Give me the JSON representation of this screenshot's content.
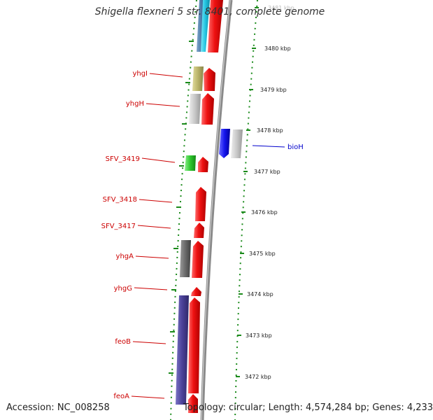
{
  "title": "Shigella flexneri 5 str. 8401, complete genome",
  "footer": {
    "accession": "Accession: NC_008258",
    "summary": "Topology: circular; Length: 4,574,284 bp; Genes: 4,233"
  },
  "colors": {
    "forward_gene": "#ee1111",
    "backbone": "#8a8a8a",
    "tick": "#1a8a1a",
    "label": "#cc0000",
    "label_reverse": "#0000cc"
  },
  "scale_labels": [
    "3481 kbp",
    "3480 kbp",
    "3479 kbp",
    "3478 kbp",
    "3477 kbp",
    "3476 kbp",
    "3475 kbp",
    "3474 kbp",
    "3473 kbp",
    "3472 kbp"
  ],
  "gene_labels": [
    {
      "name": "yhgI",
      "strand": "reverse-inner"
    },
    {
      "name": "yhgH",
      "strand": "reverse-inner"
    },
    {
      "name": "SFV_3419",
      "strand": "reverse-inner"
    },
    {
      "name": "SFV_3418",
      "strand": "reverse-inner"
    },
    {
      "name": "SFV_3417",
      "strand": "reverse-inner"
    },
    {
      "name": "yhgA",
      "strand": "reverse-inner"
    },
    {
      "name": "yhgG",
      "strand": "reverse-inner"
    },
    {
      "name": "feoB",
      "strand": "reverse-inner"
    },
    {
      "name": "feoA",
      "strand": "reverse-inner"
    },
    {
      "name": "bioH",
      "strand": "outer"
    }
  ]
}
